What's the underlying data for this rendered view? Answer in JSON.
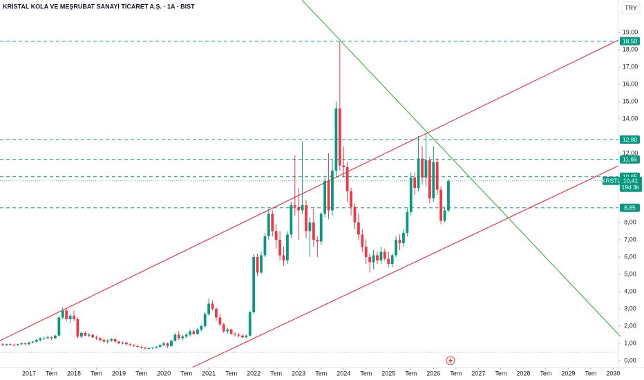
{
  "chart_data": {
    "type": "candlestick",
    "title": "KRİSTAL KOLA VE MEŞRUBAT SANAYİ TİCARET A.Ş. · 1A · BIST",
    "currency": "TRY",
    "symbol": "KRSTL",
    "last": {
      "value": 10.41,
      "label": "10,41"
    },
    "countdown": "19d 3h",
    "up_color": "#089981",
    "down_color": "#f23645",
    "level_color": "#089981",
    "x": [
      -7,
      -6,
      -5,
      -4,
      -3,
      -2,
      -1,
      0,
      1,
      2,
      3,
      4,
      5,
      6,
      7,
      8,
      9,
      10,
      11,
      12,
      13,
      14,
      15,
      16,
      17,
      18,
      19,
      20,
      21,
      22,
      23,
      24,
      25,
      26,
      27,
      28,
      29,
      30,
      31,
      32,
      33,
      34,
      35,
      36,
      37,
      38,
      39,
      40,
      41,
      42,
      43,
      44,
      45,
      46,
      47,
      48,
      49,
      50,
      51,
      52,
      53,
      54,
      55,
      56,
      57,
      58,
      59,
      60,
      61,
      62,
      63,
      64,
      65,
      66,
      67,
      68,
      69,
      70,
      71,
      72,
      73,
      74,
      75,
      76,
      77,
      78,
      79,
      80,
      81,
      82,
      83,
      84,
      85,
      86,
      87,
      88,
      89,
      90,
      91,
      92,
      93,
      94,
      95,
      96,
      97,
      98,
      99,
      100,
      101,
      102,
      103,
      104,
      105,
      106,
      107,
      108,
      109,
      110,
      111,
      112
    ],
    "ohlc": [
      [
        0.95,
        1.0,
        0.85,
        0.9
      ],
      [
        0.9,
        0.98,
        0.85,
        0.95
      ],
      [
        0.95,
        1.0,
        0.88,
        0.92
      ],
      [
        0.92,
        0.98,
        0.85,
        0.9
      ],
      [
        0.9,
        0.98,
        0.86,
        0.95
      ],
      [
        0.95,
        1.05,
        0.9,
        1.0
      ],
      [
        1.0,
        1.05,
        0.92,
        0.95
      ],
      [
        0.95,
        1.1,
        0.9,
        1.05
      ],
      [
        1.05,
        1.15,
        1.0,
        1.1
      ],
      [
        1.1,
        1.25,
        1.05,
        1.2
      ],
      [
        1.2,
        1.35,
        1.1,
        1.3
      ],
      [
        1.3,
        1.4,
        1.2,
        1.3
      ],
      [
        1.3,
        1.45,
        1.25,
        1.35
      ],
      [
        1.35,
        1.4,
        1.2,
        1.3
      ],
      [
        1.3,
        1.5,
        1.25,
        1.45
      ],
      [
        1.45,
        2.6,
        1.4,
        2.5
      ],
      [
        2.5,
        3.1,
        2.4,
        2.9
      ],
      [
        2.9,
        3.0,
        2.3,
        2.4
      ],
      [
        2.4,
        2.7,
        2.2,
        2.6
      ],
      [
        2.6,
        2.9,
        2.3,
        2.4
      ],
      [
        2.4,
        2.5,
        1.3,
        1.4
      ],
      [
        1.4,
        1.7,
        1.3,
        1.6
      ],
      [
        1.6,
        1.7,
        1.4,
        1.45
      ],
      [
        1.45,
        1.6,
        1.35,
        1.5
      ],
      [
        1.5,
        1.55,
        1.3,
        1.35
      ],
      [
        1.35,
        1.45,
        1.2,
        1.3
      ],
      [
        1.3,
        1.35,
        1.1,
        1.2
      ],
      [
        1.2,
        1.3,
        1.05,
        1.1
      ],
      [
        1.1,
        1.25,
        1.0,
        1.15
      ],
      [
        1.15,
        1.3,
        1.1,
        1.25
      ],
      [
        1.25,
        1.3,
        1.05,
        1.1
      ],
      [
        1.1,
        1.15,
        0.95,
        1.0
      ],
      [
        1.0,
        1.1,
        0.95,
        1.05
      ],
      [
        1.05,
        1.1,
        0.9,
        0.95
      ],
      [
        0.95,
        1.0,
        0.85,
        0.9
      ],
      [
        0.9,
        0.95,
        0.8,
        0.85
      ],
      [
        0.85,
        0.9,
        0.75,
        0.8
      ],
      [
        0.8,
        0.85,
        0.7,
        0.75
      ],
      [
        0.75,
        0.8,
        0.65,
        0.7
      ],
      [
        0.7,
        0.78,
        0.65,
        0.72
      ],
      [
        0.72,
        0.8,
        0.68,
        0.75
      ],
      [
        0.75,
        0.85,
        0.7,
        0.8
      ],
      [
        0.8,
        0.95,
        0.75,
        0.9
      ],
      [
        0.9,
        1.1,
        0.85,
        1.0
      ],
      [
        1.0,
        1.05,
        0.75,
        0.85
      ],
      [
        0.85,
        1.2,
        0.8,
        1.15
      ],
      [
        1.15,
        1.6,
        1.1,
        1.5
      ],
      [
        1.5,
        1.7,
        1.2,
        1.3
      ],
      [
        1.3,
        1.5,
        1.2,
        1.4
      ],
      [
        1.4,
        1.6,
        1.3,
        1.5
      ],
      [
        1.5,
        1.8,
        1.4,
        1.7
      ],
      [
        1.7,
        1.8,
        1.5,
        1.55
      ],
      [
        1.55,
        1.9,
        1.5,
        1.8
      ],
      [
        1.8,
        2.1,
        1.7,
        2.0
      ],
      [
        2.0,
        2.8,
        1.9,
        2.7
      ],
      [
        2.7,
        3.6,
        2.6,
        3.3
      ],
      [
        3.3,
        3.5,
        2.9,
        3.0
      ],
      [
        3.0,
        3.1,
        2.3,
        2.5
      ],
      [
        2.5,
        2.7,
        2.0,
        2.1
      ],
      [
        2.1,
        2.2,
        1.6,
        1.7
      ],
      [
        1.7,
        1.9,
        1.55,
        1.8
      ],
      [
        1.8,
        1.85,
        1.5,
        1.55
      ],
      [
        1.55,
        1.65,
        1.4,
        1.5
      ],
      [
        1.5,
        1.6,
        1.35,
        1.45
      ],
      [
        1.45,
        1.55,
        1.3,
        1.35
      ],
      [
        1.35,
        1.5,
        1.3,
        1.45
      ],
      [
        1.45,
        2.9,
        1.4,
        2.8
      ],
      [
        2.8,
        6.2,
        2.7,
        6.0
      ],
      [
        6.0,
        6.2,
        4.9,
        5.1
      ],
      [
        5.1,
        6.3,
        5.0,
        6.1
      ],
      [
        6.1,
        7.4,
        6.0,
        7.2
      ],
      [
        7.2,
        8.8,
        7.0,
        8.5
      ],
      [
        8.5,
        8.7,
        7.2,
        7.5
      ],
      [
        7.5,
        7.9,
        6.5,
        7.0
      ],
      [
        7.0,
        7.5,
        5.8,
        6.1
      ],
      [
        6.1,
        6.6,
        5.5,
        5.8
      ],
      [
        5.8,
        7.5,
        5.6,
        7.3
      ],
      [
        7.3,
        9.2,
        7.1,
        9.0
      ],
      [
        9.0,
        11.9,
        8.4,
        8.9
      ],
      [
        8.9,
        10.0,
        7.0,
        8.7
      ],
      [
        8.7,
        12.7,
        8.5,
        9.0
      ],
      [
        9.0,
        9.3,
        7.1,
        7.5
      ],
      [
        7.5,
        8.3,
        6.0,
        8.0
      ],
      [
        8.0,
        8.8,
        6.6,
        7.0
      ],
      [
        7.0,
        7.2,
        6.0,
        6.9
      ],
      [
        6.9,
        8.6,
        6.7,
        8.5
      ],
      [
        8.5,
        10.6,
        8.3,
        10.4
      ],
      [
        10.4,
        12.0,
        8.2,
        8.7
      ],
      [
        8.7,
        11.6,
        8.4,
        11.0
      ],
      [
        11.0,
        15.0,
        10.6,
        14.6
      ],
      [
        14.6,
        18.5,
        11.0,
        11.3
      ],
      [
        11.3,
        12.4,
        10.6,
        11.2
      ],
      [
        11.2,
        11.5,
        9.2,
        9.8
      ],
      [
        9.8,
        10.0,
        8.4,
        8.9
      ],
      [
        8.9,
        9.1,
        7.6,
        8.0
      ],
      [
        8.0,
        8.5,
        7.0,
        7.3
      ],
      [
        7.3,
        7.6,
        6.3,
        6.6
      ],
      [
        6.6,
        7.0,
        5.6,
        6.0
      ],
      [
        6.0,
        6.2,
        5.1,
        5.7
      ],
      [
        5.7,
        6.4,
        5.3,
        6.1
      ],
      [
        6.1,
        6.3,
        5.6,
        5.8
      ],
      [
        5.8,
        6.6,
        5.6,
        6.3
      ],
      [
        6.3,
        6.5,
        5.8,
        5.9
      ],
      [
        5.9,
        6.3,
        5.4,
        5.6
      ],
      [
        5.6,
        6.2,
        5.4,
        6.1
      ],
      [
        6.1,
        7.2,
        6.0,
        7.0
      ],
      [
        7.0,
        7.3,
        6.4,
        6.8
      ],
      [
        6.8,
        7.6,
        6.6,
        7.4
      ],
      [
        7.4,
        8.8,
        7.2,
        8.6
      ],
      [
        8.6,
        10.9,
        8.4,
        10.6
      ],
      [
        10.6,
        10.9,
        9.6,
        10.0
      ],
      [
        10.0,
        13.0,
        9.8,
        11.7
      ],
      [
        11.7,
        12.4,
        10.2,
        10.6
      ],
      [
        10.6,
        13.2,
        10.1,
        11.6
      ],
      [
        11.6,
        11.8,
        9.1,
        9.4
      ],
      [
        9.4,
        12.4,
        9.2,
        11.5
      ],
      [
        11.5,
        11.7,
        9.6,
        9.9
      ],
      [
        9.9,
        10.1,
        7.9,
        8.1
      ],
      [
        8.1,
        8.9,
        8.0,
        8.7
      ],
      [
        8.7,
        10.5,
        8.6,
        10.41
      ]
    ],
    "levels": [
      {
        "value": 18.5,
        "label": "18,50"
      },
      {
        "value": 12.8,
        "label": "12,80"
      },
      {
        "value": 11.65,
        "label": "11,65"
      },
      {
        "value": 10.65,
        "label": "10,65"
      },
      {
        "value": 8.85,
        "label": "8,85"
      }
    ],
    "xlim": [
      -7.75,
      157.4
    ],
    "xticks": [
      {
        "value": 0,
        "label": "2017"
      },
      {
        "value": 6,
        "label": "Tem"
      },
      {
        "value": 12,
        "label": "2018"
      },
      {
        "value": 18,
        "label": "Tem"
      },
      {
        "value": 24,
        "label": "2019"
      },
      {
        "value": 30,
        "label": "Tem"
      },
      {
        "value": 36,
        "label": "2020"
      },
      {
        "value": 42,
        "label": "Tem"
      },
      {
        "value": 48,
        "label": "2021"
      },
      {
        "value": 54,
        "label": "Tem"
      },
      {
        "value": 60,
        "label": "2022"
      },
      {
        "value": 66,
        "label": "Tem"
      },
      {
        "value": 72,
        "label": "2023"
      },
      {
        "value": 78,
        "label": "Tem"
      },
      {
        "value": 84,
        "label": "2024"
      },
      {
        "value": 90,
        "label": "Tem"
      },
      {
        "value": 96,
        "label": "2025"
      },
      {
        "value": 102,
        "label": "Tem"
      },
      {
        "value": 108,
        "label": "2026"
      },
      {
        "value": 114,
        "label": "Tem"
      },
      {
        "value": 120,
        "label": "2027"
      },
      {
        "value": 126,
        "label": "Tem"
      },
      {
        "value": 132,
        "label": "2028"
      },
      {
        "value": 138,
        "label": "Tem"
      },
      {
        "value": 144,
        "label": "2029"
      },
      {
        "value": 150,
        "label": "Tem"
      },
      {
        "value": 156,
        "label": "2030"
      }
    ],
    "ylim": [
      -0.52,
      20.88
    ],
    "yticks": [
      {
        "value": 0,
        "label": "0,00"
      },
      {
        "value": 1,
        "label": "1,00"
      },
      {
        "value": 2,
        "label": "2,00"
      },
      {
        "value": 3,
        "label": "3,00"
      },
      {
        "value": 4,
        "label": "4,00"
      },
      {
        "value": 5,
        "label": "5,00"
      },
      {
        "value": 6,
        "label": "6,00"
      },
      {
        "value": 7,
        "label": "7,00"
      },
      {
        "value": 8,
        "label": "8,00"
      },
      {
        "value": 12,
        "label": "12,00"
      },
      {
        "value": 14,
        "label": "14,00"
      },
      {
        "value": 15,
        "label": "15,00"
      },
      {
        "value": 16,
        "label": "16,00"
      },
      {
        "value": 17,
        "label": "17,00"
      },
      {
        "value": 18,
        "label": "18,00"
      },
      {
        "value": 19,
        "label": "19,00"
      }
    ],
    "grid": false
  }
}
